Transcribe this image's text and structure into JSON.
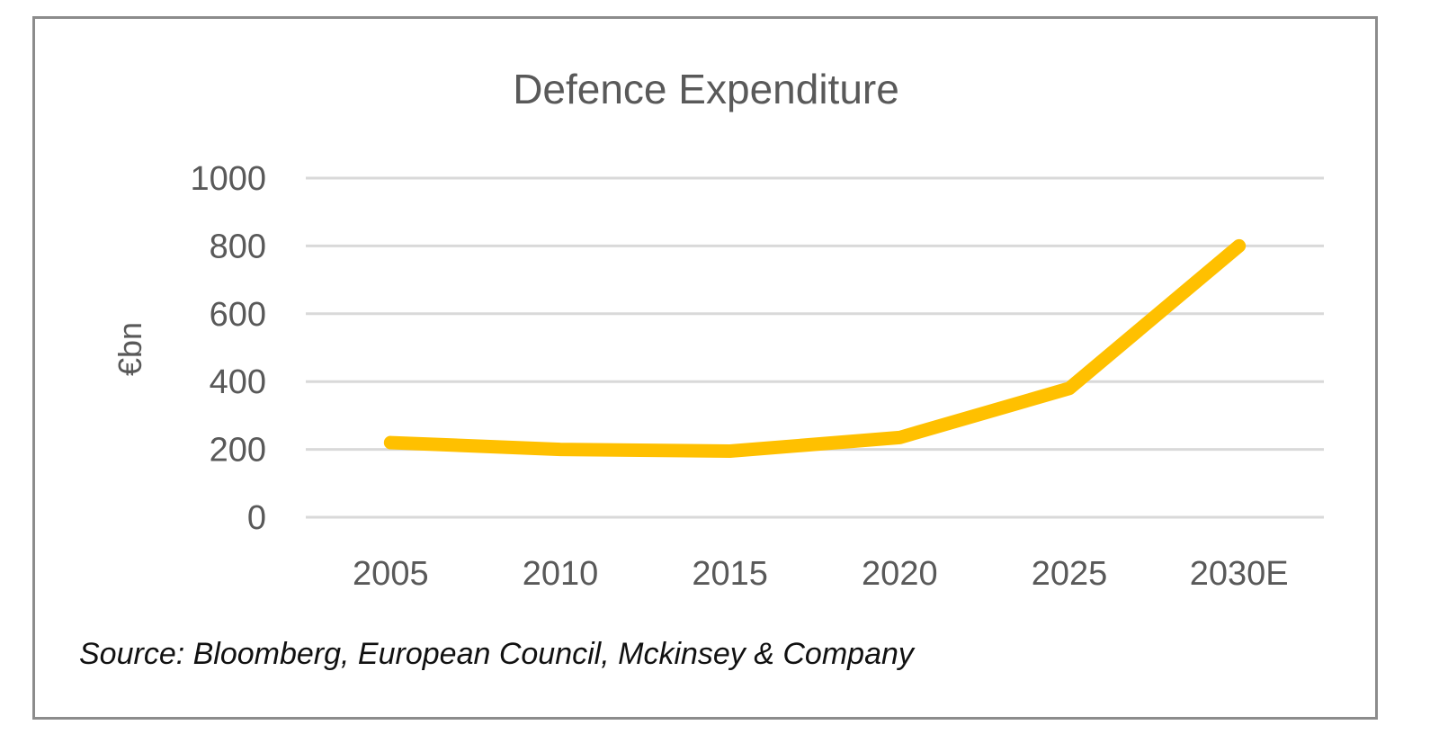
{
  "chart_data": {
    "type": "line",
    "title": "Defence Expenditure",
    "xlabel": "",
    "ylabel": "€bn",
    "categories": [
      "2005",
      "2010",
      "2015",
      "2020",
      "2025",
      "2030E"
    ],
    "series": [
      {
        "name": "Defence Expenditure",
        "values": [
          220,
          200,
          195,
          235,
          380,
          800
        ],
        "color": "#FFC000"
      }
    ],
    "ylim": [
      0,
      1000
    ],
    "yticks": [
      "0",
      "200",
      "400",
      "600",
      "800",
      "1000"
    ],
    "grid": true,
    "legend": "none",
    "source": "Source: Bloomberg, European Council, Mckinsey & Company"
  }
}
